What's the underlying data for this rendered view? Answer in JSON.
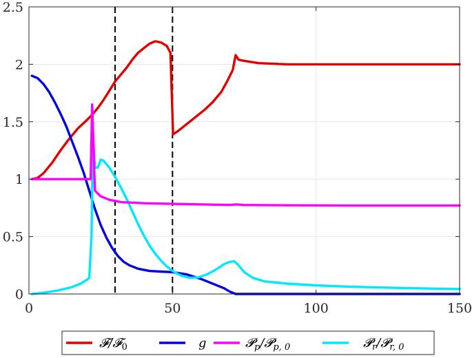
{
  "chart_data": {
    "type": "line",
    "xlim": [
      0,
      150
    ],
    "ylim": [
      0,
      2.5
    ],
    "x_ticks": [
      0,
      50,
      100,
      150
    ],
    "y_ticks": [
      0,
      0.5,
      1,
      1.5,
      2,
      2.5
    ],
    "x_tick_labels": [
      "0",
      "50",
      "100",
      "150"
    ],
    "y_tick_labels": [
      "0",
      "0.5",
      "1",
      "1.5",
      "2",
      "2.5"
    ],
    "grid": true,
    "legend_position": "bottom-outside",
    "vertical_dashed_lines": [
      30,
      50
    ],
    "series": [
      {
        "name": "F/F0",
        "color": "#e00000",
        "points": [
          [
            1,
            1
          ],
          [
            3,
            1.01
          ],
          [
            5,
            1.05
          ],
          [
            8,
            1.14
          ],
          [
            11,
            1.25
          ],
          [
            14,
            1.35
          ],
          [
            17,
            1.44
          ],
          [
            20,
            1.51
          ],
          [
            22,
            1.56
          ],
          [
            24,
            1.62
          ],
          [
            26,
            1.69
          ],
          [
            28,
            1.77
          ],
          [
            30,
            1.85
          ],
          [
            32,
            1.91
          ],
          [
            34,
            1.97
          ],
          [
            36,
            2.04
          ],
          [
            38,
            2.1
          ],
          [
            40,
            2.14
          ],
          [
            42,
            2.18
          ],
          [
            44,
            2.2
          ],
          [
            46,
            2.19
          ],
          [
            48,
            2.16
          ],
          [
            49.3,
            2.1
          ],
          [
            49.8,
            1.7
          ],
          [
            50.2,
            1.39
          ],
          [
            52,
            1.42
          ],
          [
            55,
            1.48
          ],
          [
            58,
            1.54
          ],
          [
            61,
            1.6
          ],
          [
            64,
            1.67
          ],
          [
            67,
            1.76
          ],
          [
            69,
            1.85
          ],
          [
            71,
            1.95
          ],
          [
            72,
            2.08
          ],
          [
            73,
            2.04
          ],
          [
            75,
            2.03
          ],
          [
            80,
            2.01
          ],
          [
            90,
            2
          ],
          [
            100,
            2
          ],
          [
            110,
            2
          ],
          [
            120,
            2
          ],
          [
            130,
            2
          ],
          [
            140,
            2
          ],
          [
            150,
            2
          ]
        ]
      },
      {
        "name": "g",
        "color": "#0000e0",
        "points": [
          [
            1,
            1.9
          ],
          [
            3,
            1.88
          ],
          [
            5,
            1.83
          ],
          [
            7,
            1.76
          ],
          [
            9,
            1.67
          ],
          [
            11,
            1.57
          ],
          [
            13,
            1.46
          ],
          [
            15,
            1.33
          ],
          [
            17,
            1.2
          ],
          [
            19,
            1.06
          ],
          [
            21,
            0.9
          ],
          [
            23,
            0.74
          ],
          [
            25,
            0.6
          ],
          [
            27,
            0.49
          ],
          [
            29,
            0.4
          ],
          [
            31,
            0.33
          ],
          [
            33,
            0.28
          ],
          [
            35,
            0.25
          ],
          [
            38,
            0.22
          ],
          [
            42,
            0.2
          ],
          [
            46,
            0.195
          ],
          [
            50,
            0.19
          ],
          [
            55,
            0.17
          ],
          [
            60,
            0.13
          ],
          [
            65,
            0.08
          ],
          [
            68,
            0.05
          ],
          [
            70,
            0.02
          ],
          [
            72,
            0
          ],
          [
            80,
            0
          ],
          [
            100,
            0
          ],
          [
            120,
            0
          ],
          [
            150,
            0
          ]
        ]
      },
      {
        "name": "Pp/Pp,0",
        "color": "#ff00ff",
        "points": [
          [
            1,
            1
          ],
          [
            10,
            1
          ],
          [
            20,
            1
          ],
          [
            21.5,
            1
          ],
          [
            22,
            1.65
          ],
          [
            22.6,
            1.2
          ],
          [
            23,
            0.9
          ],
          [
            25,
            0.85
          ],
          [
            28,
            0.82
          ],
          [
            32,
            0.8
          ],
          [
            40,
            0.79
          ],
          [
            50,
            0.785
          ],
          [
            60,
            0.78
          ],
          [
            70,
            0.775
          ],
          [
            72,
            0.78
          ],
          [
            75,
            0.775
          ],
          [
            90,
            0.772
          ],
          [
            110,
            0.77
          ],
          [
            130,
            0.77
          ],
          [
            150,
            0.77
          ]
        ]
      },
      {
        "name": "Pr/Pr,0",
        "color": "#00e8ff",
        "points": [
          [
            1,
            0
          ],
          [
            5,
            0.01
          ],
          [
            10,
            0.03
          ],
          [
            15,
            0.06
          ],
          [
            18,
            0.09
          ],
          [
            20,
            0.12
          ],
          [
            21,
            0.14
          ],
          [
            21.8,
            0.5
          ],
          [
            22.3,
            1.4
          ],
          [
            23,
            1.1
          ],
          [
            24,
            1.1
          ],
          [
            25,
            1.17
          ],
          [
            26,
            1.16
          ],
          [
            28,
            1.1
          ],
          [
            30,
            1.02
          ],
          [
            32,
            0.93
          ],
          [
            34,
            0.83
          ],
          [
            36,
            0.72
          ],
          [
            38,
            0.61
          ],
          [
            40,
            0.51
          ],
          [
            42,
            0.42
          ],
          [
            44,
            0.35
          ],
          [
            46,
            0.29
          ],
          [
            48,
            0.24
          ],
          [
            50,
            0.2
          ],
          [
            53,
            0.16
          ],
          [
            56,
            0.14
          ],
          [
            59,
            0.145
          ],
          [
            62,
            0.17
          ],
          [
            65,
            0.21
          ],
          [
            68,
            0.26
          ],
          [
            70,
            0.28
          ],
          [
            71.5,
            0.285
          ],
          [
            73,
            0.25
          ],
          [
            75,
            0.19
          ],
          [
            78,
            0.14
          ],
          [
            82,
            0.11
          ],
          [
            90,
            0.09
          ],
          [
            100,
            0.075
          ],
          [
            110,
            0.065
          ],
          [
            120,
            0.058
          ],
          [
            130,
            0.052
          ],
          [
            140,
            0.047
          ],
          [
            150,
            0.043
          ]
        ]
      }
    ]
  },
  "legend": {
    "items": [
      {
        "key": "f",
        "color": "#e00000"
      },
      {
        "key": "g",
        "color": "#0000e0"
      },
      {
        "key": "pp",
        "color": "#ff00ff"
      },
      {
        "key": "pr",
        "color": "#00e8ff"
      }
    ]
  }
}
